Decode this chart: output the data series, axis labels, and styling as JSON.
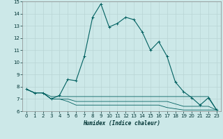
{
  "xlabel": "Humidex (Indice chaleur)",
  "xlim": [
    -0.5,
    23.5
  ],
  "ylim": [
    6,
    15
  ],
  "yticks": [
    6,
    7,
    8,
    9,
    10,
    11,
    12,
    13,
    14,
    15
  ],
  "xticks": [
    0,
    1,
    2,
    3,
    4,
    5,
    6,
    7,
    8,
    9,
    10,
    11,
    12,
    13,
    14,
    15,
    16,
    17,
    18,
    19,
    20,
    21,
    22,
    23
  ],
  "bg_color": "#cce8e8",
  "grid_color": "#b8d4d4",
  "line_color": "#006060",
  "main_line": {
    "x": [
      0,
      1,
      2,
      3,
      4,
      5,
      6,
      7,
      8,
      9,
      10,
      11,
      12,
      13,
      14,
      15,
      16,
      17,
      18,
      19,
      20,
      21,
      22,
      23
    ],
    "y": [
      7.8,
      7.5,
      7.5,
      7.0,
      7.3,
      8.6,
      8.5,
      10.5,
      13.7,
      14.8,
      12.9,
      13.2,
      13.7,
      13.5,
      12.5,
      11.0,
      11.7,
      10.5,
      8.4,
      7.6,
      7.1,
      6.5,
      7.1,
      6.1
    ]
  },
  "flat_lines": [
    {
      "x": [
        0,
        1,
        2,
        3,
        4,
        5,
        6,
        7,
        8,
        9,
        10,
        11,
        12,
        13,
        14,
        15,
        16,
        17,
        18,
        19,
        20,
        21,
        22,
        23
      ],
      "y": [
        7.8,
        7.5,
        7.5,
        7.2,
        7.2,
        7.2,
        7.2,
        7.2,
        7.2,
        7.2,
        7.2,
        7.2,
        7.2,
        7.2,
        7.2,
        7.2,
        7.2,
        7.2,
        7.2,
        7.2,
        7.2,
        7.2,
        7.2,
        6.1
      ]
    },
    {
      "x": [
        0,
        1,
        2,
        3,
        4,
        5,
        6,
        7,
        8,
        9,
        10,
        11,
        12,
        13,
        14,
        15,
        16,
        17,
        18,
        19,
        20,
        21,
        22,
        23
      ],
      "y": [
        7.8,
        7.5,
        7.5,
        7.0,
        7.0,
        7.0,
        6.8,
        6.8,
        6.8,
        6.8,
        6.8,
        6.8,
        6.8,
        6.8,
        6.8,
        6.8,
        6.8,
        6.8,
        6.6,
        6.4,
        6.4,
        6.4,
        6.4,
        6.1
      ]
    },
    {
      "x": [
        0,
        1,
        2,
        3,
        4,
        5,
        6,
        7,
        8,
        9,
        10,
        11,
        12,
        13,
        14,
        15,
        16,
        17,
        18,
        19,
        20,
        21,
        22,
        23
      ],
      "y": [
        7.8,
        7.5,
        7.5,
        7.0,
        7.0,
        6.8,
        6.5,
        6.5,
        6.5,
        6.5,
        6.5,
        6.5,
        6.5,
        6.5,
        6.5,
        6.5,
        6.5,
        6.3,
        6.2,
        6.1,
        6.1,
        6.1,
        6.1,
        6.1
      ]
    }
  ]
}
